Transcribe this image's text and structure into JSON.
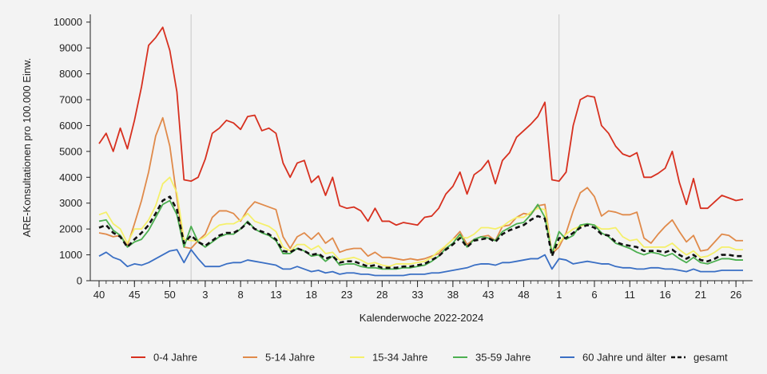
{
  "chart_data": {
    "type": "line",
    "title": "",
    "xlabel": "Kalenderwoche 2022-2024",
    "ylabel": "ARE-Konsultationen pro 100.000 Einw.",
    "ylim": [
      0,
      10300
    ],
    "y_ticks": [
      0,
      1000,
      2000,
      3000,
      4000,
      5000,
      6000,
      7000,
      8000,
      9000,
      10000
    ],
    "x_ticks": [
      {
        "label": "40",
        "index": 0
      },
      {
        "label": "45",
        "index": 5
      },
      {
        "label": "50",
        "index": 10
      },
      {
        "label": "3",
        "index": 15
      },
      {
        "label": "8",
        "index": 20
      },
      {
        "label": "13",
        "index": 25
      },
      {
        "label": "18",
        "index": 30
      },
      {
        "label": "23",
        "index": 35
      },
      {
        "label": "28",
        "index": 40
      },
      {
        "label": "33",
        "index": 45
      },
      {
        "label": "38",
        "index": 50
      },
      {
        "label": "43",
        "index": 55
      },
      {
        "label": "48",
        "index": 60
      },
      {
        "label": "1",
        "index": 65
      },
      {
        "label": "6",
        "index": 70
      },
      {
        "label": "11",
        "index": 75
      },
      {
        "label": "16",
        "index": 80
      },
      {
        "label": "21",
        "index": 85
      },
      {
        "label": "26",
        "index": 90
      }
    ],
    "year_separators": [
      13,
      65
    ],
    "legend_position": "bottom",
    "series": [
      {
        "name": "0-4 Jahre",
        "color": "#d7301f",
        "dashed": false,
        "values": [
          5300,
          5700,
          5000,
          5900,
          5100,
          6200,
          7500,
          9100,
          9400,
          9800,
          8900,
          7300,
          3900,
          3850,
          4000,
          4700,
          5700,
          5900,
          6200,
          6100,
          5850,
          6350,
          6400,
          5800,
          5900,
          5700,
          4550,
          4000,
          4550,
          4650,
          3800,
          4050,
          3300,
          4000,
          2900,
          2800,
          2850,
          2700,
          2300,
          2800,
          2300,
          2300,
          2150,
          2250,
          2200,
          2150,
          2450,
          2500,
          2800,
          3350,
          3650,
          4200,
          3350,
          4100,
          4300,
          4650,
          3750,
          4650,
          4950,
          5550,
          5800,
          6050,
          6350,
          6900,
          3900,
          3850,
          4200,
          6000,
          7000,
          7150,
          7100,
          6000,
          5700,
          5200,
          4900,
          4800,
          4950,
          4000,
          4000,
          4150,
          4350,
          5000,
          3800,
          2950,
          3950,
          2800,
          2800,
          3050,
          3300,
          3200,
          3100,
          3150
        ]
      },
      {
        "name": "5-14 Jahre",
        "color": "#e08a4a",
        "dashed": false,
        "values": [
          1850,
          1800,
          1700,
          1750,
          1350,
          2200,
          3100,
          4200,
          5600,
          6300,
          5200,
          3200,
          1300,
          1250,
          1550,
          1800,
          2450,
          2700,
          2700,
          2600,
          2300,
          2750,
          3050,
          2950,
          2850,
          2750,
          1700,
          1250,
          1700,
          1850,
          1600,
          1850,
          1450,
          1650,
          1100,
          1200,
          1250,
          1250,
          950,
          1100,
          900,
          900,
          850,
          800,
          850,
          800,
          850,
          950,
          1050,
          1350,
          1600,
          1900,
          1400,
          1600,
          1700,
          1750,
          1550,
          2100,
          2150,
          2450,
          2600,
          2550,
          2900,
          2950,
          1050,
          1300,
          1850,
          2700,
          3400,
          3600,
          3250,
          2500,
          2700,
          2650,
          2550,
          2550,
          2650,
          1650,
          1450,
          1800,
          2100,
          2350,
          1900,
          1500,
          1750,
          1150,
          1200,
          1500,
          1800,
          1750,
          1550,
          1550
        ]
      },
      {
        "name": "15-34 Jahre",
        "color": "#f5f06a",
        "dashed": false,
        "values": [
          2550,
          2650,
          2200,
          2000,
          1450,
          2000,
          2000,
          2350,
          2900,
          3750,
          4000,
          3400,
          1600,
          1550,
          1550,
          1700,
          1950,
          2150,
          2200,
          2200,
          2350,
          2600,
          2300,
          2200,
          2100,
          1900,
          1300,
          1150,
          1400,
          1400,
          1200,
          1350,
          1050,
          1100,
          800,
          850,
          900,
          800,
          650,
          700,
          600,
          550,
          650,
          650,
          650,
          700,
          750,
          900,
          1150,
          1350,
          1600,
          1700,
          1650,
          1800,
          2050,
          2050,
          2000,
          2100,
          2300,
          2450,
          2450,
          2650,
          2800,
          2750,
          1100,
          1450,
          1800,
          2000,
          2100,
          2200,
          2150,
          2000,
          2000,
          2050,
          1700,
          1550,
          1600,
          1300,
          1300,
          1300,
          1300,
          1450,
          1200,
          1000,
          1150,
          900,
          950,
          1100,
          1300,
          1300,
          1200,
          1200
        ]
      },
      {
        "name": "35-59 Jahre",
        "color": "#4caf50",
        "dashed": false,
        "values": [
          2300,
          2350,
          1950,
          1750,
          1300,
          1500,
          1600,
          1950,
          2450,
          2950,
          3100,
          2550,
          1300,
          2100,
          1500,
          1300,
          1500,
          1700,
          1800,
          1800,
          2000,
          2300,
          2000,
          1850,
          1750,
          1550,
          1050,
          1050,
          1250,
          1150,
          950,
          1000,
          750,
          950,
          600,
          650,
          650,
          550,
          500,
          500,
          450,
          450,
          450,
          500,
          500,
          550,
          600,
          750,
          950,
          1250,
          1450,
          1800,
          1300,
          1600,
          1700,
          1650,
          1550,
          1900,
          2050,
          2200,
          2250,
          2550,
          2950,
          2450,
          1050,
          1900,
          1600,
          1750,
          2150,
          2200,
          2150,
          1850,
          1700,
          1450,
          1350,
          1250,
          1100,
          1000,
          1100,
          1050,
          950,
          1050,
          850,
          700,
          900,
          700,
          650,
          750,
          850,
          850,
          800,
          800
        ]
      },
      {
        "name": "60 Jahre und älter",
        "color": "#3a6fc4",
        "dashed": false,
        "values": [
          950,
          1100,
          900,
          800,
          550,
          650,
          600,
          700,
          850,
          1000,
          1150,
          1200,
          700,
          1200,
          850,
          550,
          550,
          550,
          650,
          700,
          700,
          800,
          750,
          700,
          650,
          600,
          450,
          450,
          550,
          450,
          350,
          400,
          300,
          350,
          250,
          300,
          300,
          250,
          250,
          200,
          200,
          200,
          200,
          200,
          250,
          250,
          250,
          300,
          300,
          350,
          400,
          450,
          500,
          600,
          650,
          650,
          600,
          700,
          700,
          750,
          800,
          850,
          850,
          1000,
          450,
          850,
          800,
          650,
          700,
          750,
          700,
          650,
          650,
          550,
          500,
          500,
          450,
          450,
          500,
          500,
          450,
          450,
          400,
          350,
          450,
          350,
          350,
          350,
          400,
          400,
          400,
          400
        ]
      },
      {
        "name": "gesamt",
        "color": "#111111",
        "dashed": true,
        "values": [
          2050,
          2150,
          1850,
          1700,
          1300,
          1600,
          1850,
          2150,
          2600,
          3100,
          3250,
          2750,
          1450,
          1750,
          1500,
          1350,
          1550,
          1750,
          1850,
          1850,
          2000,
          2250,
          2000,
          1900,
          1800,
          1600,
          1150,
          1100,
          1250,
          1150,
          1000,
          1050,
          850,
          950,
          700,
          750,
          750,
          650,
          550,
          600,
          500,
          500,
          500,
          550,
          550,
          600,
          650,
          800,
          950,
          1200,
          1400,
          1650,
          1300,
          1550,
          1600,
          1650,
          1500,
          1800,
          1950,
          2050,
          2150,
          2350,
          2500,
          2400,
          950,
          1650,
          1650,
          1850,
          2050,
          2150,
          2050,
          1800,
          1750,
          1500,
          1400,
          1350,
          1300,
          1150,
          1150,
          1150,
          1100,
          1200,
          1000,
          850,
          1000,
          800,
          750,
          850,
          1000,
          1000,
          950,
          950
        ]
      }
    ]
  }
}
